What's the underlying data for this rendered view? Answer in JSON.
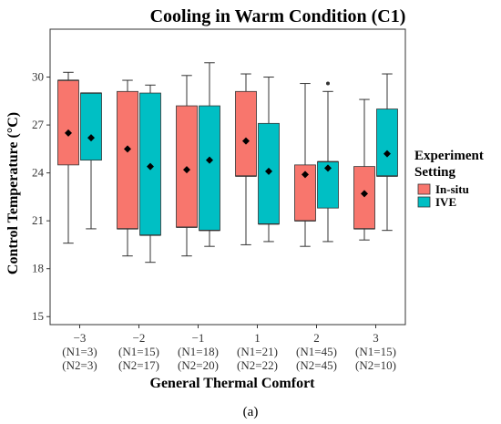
{
  "chart_data": {
    "type": "box",
    "title": "Cooling in Warm Condition (C1)",
    "xlabel": "General Thermal Comfort",
    "ylabel": "Control Temperature (°C)",
    "ylim": [
      14.5,
      33.0
    ],
    "yticks": [
      15,
      18,
      21,
      24,
      27,
      30
    ],
    "categories": [
      {
        "label": "−3",
        "n1": "(N1=3)",
        "n2": "(N2=3)"
      },
      {
        "label": "−2",
        "n1": "(N1=15)",
        "n2": "(N2=17)"
      },
      {
        "label": "−1",
        "n1": "(N1=18)",
        "n2": "(N2=20)"
      },
      {
        "label": "1",
        "n1": "(N1=21)",
        "n2": "(N2=22)"
      },
      {
        "label": "2",
        "n1": "(N1=45)",
        "n2": "(N2=45)"
      },
      {
        "label": "3",
        "n1": "(N1=15)",
        "n2": "(N2=10)"
      }
    ],
    "legend": {
      "title_line1": "Experiment",
      "title_line2": "Setting",
      "placement": "right"
    },
    "series": [
      {
        "name": "In-situ",
        "color": "#F8766D",
        "boxes": [
          {
            "min": 19.6,
            "q1": 24.5,
            "median": 29.8,
            "q3": 29.8,
            "max": 30.3,
            "mean": 26.5,
            "outliers": []
          },
          {
            "min": 18.8,
            "q1": 20.5,
            "median": 20.5,
            "q3": 29.1,
            "max": 29.8,
            "mean": 25.5,
            "outliers": []
          },
          {
            "min": 18.8,
            "q1": 20.6,
            "median": 20.6,
            "q3": 28.2,
            "max": 30.1,
            "mean": 24.2,
            "outliers": []
          },
          {
            "min": 19.5,
            "q1": 23.8,
            "median": 23.8,
            "q3": 29.1,
            "max": 30.2,
            "mean": 26.0,
            "outliers": []
          },
          {
            "min": 19.4,
            "q1": 21.0,
            "median": 21.0,
            "q3": 24.5,
            "max": 29.6,
            "mean": 23.9,
            "outliers": []
          },
          {
            "min": 19.8,
            "q1": 20.5,
            "median": 20.5,
            "q3": 24.4,
            "max": 28.6,
            "mean": 22.7,
            "outliers": []
          }
        ]
      },
      {
        "name": "IVE",
        "color": "#00BFC4",
        "boxes": [
          {
            "min": 20.5,
            "q1": 24.8,
            "median": 29.0,
            "q3": 29.0,
            "max": 29.0,
            "mean": 26.2,
            "outliers": []
          },
          {
            "min": 18.4,
            "q1": 20.1,
            "median": 20.1,
            "q3": 29.0,
            "max": 29.5,
            "mean": 24.4,
            "outliers": []
          },
          {
            "min": 19.4,
            "q1": 20.4,
            "median": 20.4,
            "q3": 28.2,
            "max": 30.9,
            "mean": 24.8,
            "outliers": []
          },
          {
            "min": 19.7,
            "q1": 20.8,
            "median": 20.8,
            "q3": 27.1,
            "max": 30.0,
            "mean": 24.1,
            "outliers": []
          },
          {
            "min": 19.7,
            "q1": 21.8,
            "median": 24.7,
            "q3": 24.7,
            "max": 29.1,
            "mean": 24.3,
            "outliers": [
              29.6
            ]
          },
          {
            "min": 20.4,
            "q1": 23.8,
            "median": 23.8,
            "q3": 28.0,
            "max": 30.2,
            "mean": 25.2,
            "outliers": []
          }
        ]
      }
    ]
  },
  "caption": "(a)"
}
